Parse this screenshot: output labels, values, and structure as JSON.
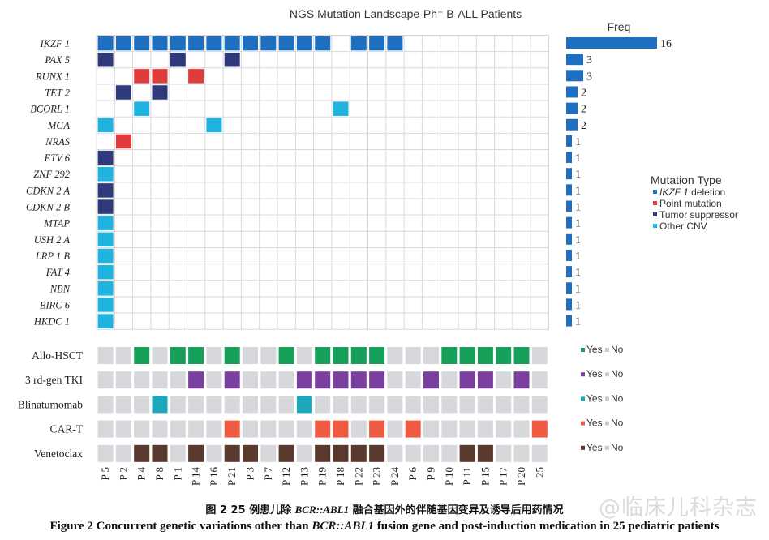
{
  "chart_data": {
    "type": "heatmap",
    "title": "NGS Mutation Landscape-Ph⁺ B-ALL Patients",
    "freq_label": "Freq",
    "patients": [
      "P 5",
      "P 2",
      "P 4",
      "P 8",
      "P 1",
      "P 14",
      "P 16",
      "P 21",
      "P 3",
      "P 7",
      "P 12",
      "P 13",
      "P 19",
      "P 18",
      "P 22",
      "P 23",
      "P 24",
      "P 6",
      "P 9",
      "P 10",
      "P 11",
      "P 15",
      "P 17",
      "P 20",
      "25"
    ],
    "genes": [
      "IKZF1",
      "PAX5",
      "RUNX1",
      "TET2",
      "BCORL1",
      "MGA",
      "NRAS",
      "ETV6",
      "ZNF292",
      "CDKN2A",
      "CDKN2B",
      "MTAP",
      "USH2A",
      "LRP1B",
      "FAT4",
      "NBN",
      "BIRC6",
      "HKDC1"
    ],
    "gene_labels": [
      "IKZF 1",
      "PAX 5",
      "RUNX 1",
      "TET 2",
      "BCORL 1",
      "MGA",
      "NRAS",
      "ETV 6",
      "ZNF 292",
      "CDKN 2 A",
      "CDKN 2 B",
      "MTAP",
      "USH 2 A",
      "LRP 1 B",
      "FAT 4",
      "NBN",
      "BIRC 6",
      "HKDC 1"
    ],
    "freq": [
      16,
      3,
      3,
      2,
      2,
      2,
      1,
      1,
      1,
      1,
      1,
      1,
      1,
      1,
      1,
      1,
      1,
      1
    ],
    "freq_labels": [
      "16",
      "3",
      "3",
      "2",
      "2",
      "2",
      "1",
      "1",
      "1",
      "1",
      "1",
      "1",
      "1",
      "1",
      "1",
      "1",
      "1",
      "1"
    ],
    "mutations": {
      "IKZF1": {
        "type": "IKZF1 deletion",
        "patients": [
          0,
          1,
          2,
          3,
          4,
          5,
          6,
          7,
          8,
          9,
          10,
          11,
          12,
          14,
          15,
          16
        ]
      },
      "PAX5": {
        "type": "Tumor suppressor",
        "patients": [
          0,
          4,
          7
        ]
      },
      "RUNX1": {
        "type": "Point mutation",
        "patients": [
          2,
          3,
          5
        ]
      },
      "TET2": {
        "type": "Tumor suppressor",
        "patients": [
          1,
          3
        ]
      },
      "BCORL1": {
        "type": "Other CNV",
        "patients": [
          2,
          13
        ]
      },
      "MGA": {
        "type": "Other CNV",
        "patients": [
          0,
          6
        ]
      },
      "NRAS": {
        "type": "Point mutation",
        "patients": [
          1
        ]
      },
      "ETV6": {
        "type": "Tumor suppressor",
        "patients": [
          0
        ]
      },
      "ZNF292": {
        "type": "Other CNV",
        "patients": [
          0
        ]
      },
      "CDKN2A": {
        "type": "Tumor suppressor",
        "patients": [
          0
        ]
      },
      "CDKN2B": {
        "type": "Tumor suppressor",
        "patients": [
          0
        ]
      },
      "MTAP": {
        "type": "Other CNV",
        "patients": [
          0
        ]
      },
      "USH2A": {
        "type": "Other CNV",
        "patients": [
          0
        ]
      },
      "LRP1B": {
        "type": "Other CNV",
        "patients": [
          0
        ]
      },
      "FAT4": {
        "type": "Other CNV",
        "patients": [
          0
        ]
      },
      "NBN": {
        "type": "Other CNV",
        "patients": [
          0
        ]
      },
      "BIRC6": {
        "type": "Other CNV",
        "patients": [
          0
        ]
      },
      "HKDC1": {
        "type": "Other CNV",
        "patients": [
          0
        ]
      }
    },
    "legend": {
      "title": "Mutation Type",
      "items": [
        {
          "label_gene": "IKZF 1",
          "label_rest": " deletion",
          "color": "#1f6fc1"
        },
        {
          "label": "Point mutation",
          "color": "#e03c3c"
        },
        {
          "label": "Tumor suppressor",
          "color": "#2f3a7d"
        },
        {
          "label": "Other CNV",
          "color": "#1fb4e0"
        }
      ]
    },
    "colors": {
      "IKZF1 deletion": "#1f6fc1",
      "Point mutation": "#e03c3c",
      "Tumor suppressor": "#2f3a7d",
      "Other CNV": "#1fb4e0",
      "empty_grid": "#ffffff",
      "grid_line": "#d9d9d9",
      "no": "#d6d8db",
      "freq_bar": "#1f6fc1"
    },
    "treatments": [
      {
        "name": "Allo-HSCT",
        "color": "#16a05a",
        "yes": [
          2,
          4,
          5,
          7,
          10,
          12,
          13,
          14,
          15,
          19,
          20,
          21,
          22,
          23
        ]
      },
      {
        "name": "3 rd-gen TKI",
        "color": "#7b3fa0",
        "yes": [
          5,
          7,
          11,
          12,
          13,
          14,
          15,
          18,
          20,
          21,
          23
        ]
      },
      {
        "name": "Blinatumomab",
        "color": "#1ba8bd",
        "yes": [
          3,
          11
        ]
      },
      {
        "name": "CAR-T",
        "color": "#ef5a43",
        "yes": [
          7,
          12,
          13,
          15,
          17,
          24
        ]
      },
      {
        "name": "Venetoclax",
        "color": "#5a3a2e",
        "yes": [
          2,
          3,
          5,
          7,
          8,
          10,
          12,
          13,
          14,
          15,
          20,
          21
        ]
      }
    ],
    "treatment_legend": {
      "yes": "Yes",
      "no": "No"
    }
  },
  "caption": {
    "cn_prefix": "图 2    25 例患儿除 ",
    "cn_gene": "BCR::ABL1",
    "cn_suffix": " 融合基因外的伴随基因变异及诱导后用药情况",
    "en_prefix": "Figure 2    Concurrent genetic variations other than ",
    "en_gene": "BCR::ABL1",
    "en_suffix": " fusion gene and post-induction medication in 25 pediatric patients"
  },
  "watermark": "@临床儿科杂志"
}
